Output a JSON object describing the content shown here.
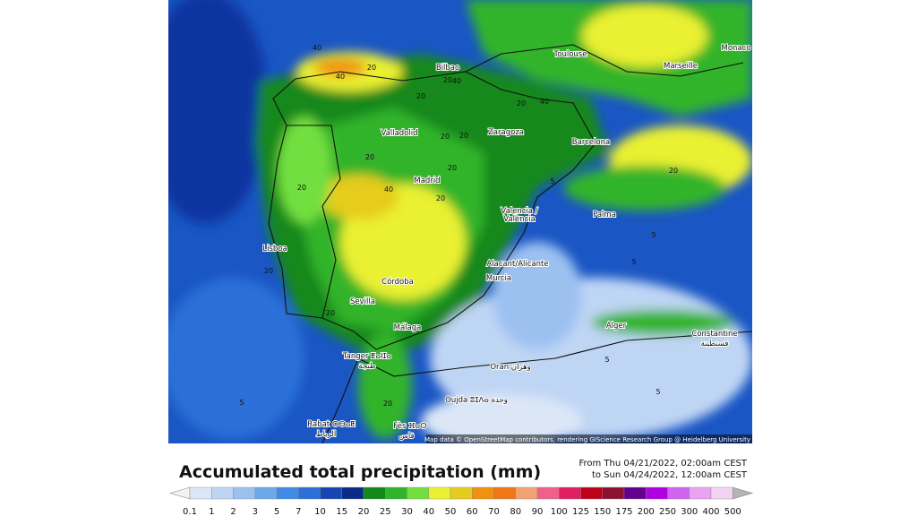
{
  "map": {
    "cities": [
      "Bilbao",
      "Toulouse",
      "Marseille",
      "Monaco",
      "Valladolid",
      "Zaragoza",
      "Barcelona",
      "Madrid",
      "Valencia /",
      "València",
      "Palma",
      "Lisboa",
      "Alacant/Alicante",
      "Murcia",
      "Córdoba",
      "Sevilla",
      "Málaga",
      "Alger",
      "Constantine",
      "قسنطينة",
      "Tanger ⵟⴰⵏⵊⴰ",
      "طنجة",
      "Oran وهران",
      "Oujda ⵓⵊⴷⴰ وجدة",
      "Rabat ⵔⴱⴰⵟ",
      "الرباط",
      "Fès ⴼⴰⵙ",
      "فاس"
    ],
    "contour_labels": [
      "40",
      "40",
      "20",
      "20",
      "20",
      "40",
      "20",
      "20",
      "40",
      "20",
      "20",
      "20",
      "20",
      "20",
      "5",
      "5",
      "5",
      "5",
      "20",
      "20",
      "40",
      "20",
      "20",
      "5",
      "5"
    ],
    "attribution": "Map data © OpenStreetMap contributors, rendering GIScience Research Group @ Heidelberg University"
  },
  "legend": {
    "title": "Accumulated total precipitation (mm)",
    "from": "From Thu 04/21/2022, 02:00am CEST",
    "to": "to Sun 04/24/2022, 12:00am CEST",
    "values": [
      0.1,
      1,
      2,
      3,
      5,
      7,
      10,
      15,
      20,
      25,
      30,
      40,
      50,
      60,
      70,
      80,
      90,
      100,
      125,
      150,
      175,
      200,
      250,
      300,
      400,
      500
    ],
    "colors": [
      "#f2f2f2",
      "#dbe7f7",
      "#bfd5f4",
      "#9cc1f1",
      "#6ea8ec",
      "#3f8be5",
      "#2a70d8",
      "#1546b4",
      "#0b2c86",
      "#14881b",
      "#30b42b",
      "#72df40",
      "#eaf032",
      "#e6cc1e",
      "#f0920f",
      "#f07718",
      "#f2a272",
      "#f0608a",
      "#e01e62",
      "#be0018",
      "#8c1030",
      "#64008e",
      "#b000e0",
      "#d262f0",
      "#e8a4f0",
      "#f2d4f2",
      "#b4b4b4"
    ]
  }
}
